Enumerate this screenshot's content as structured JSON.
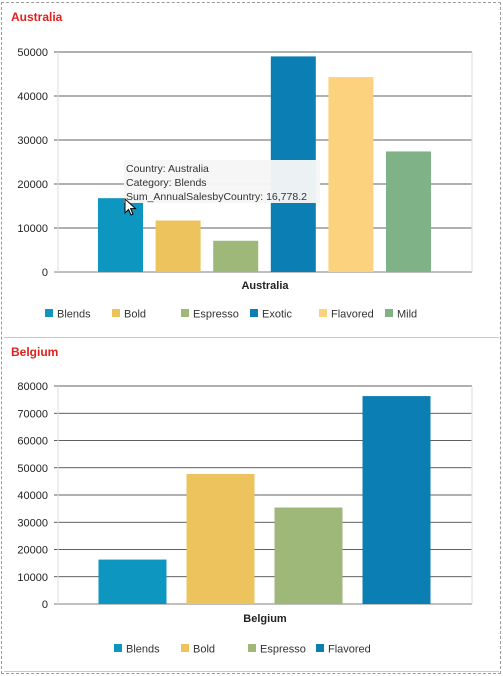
{
  "panels": [
    {
      "title": "Australia"
    },
    {
      "title": "Belgium"
    }
  ],
  "tooltip": {
    "line1": "Country: Australia",
    "line2": "Category: Blends",
    "line3": "Sum_AnnualSalesbyCountry: 16,778.2"
  },
  "colors": {
    "Blends": "#0d96bf",
    "Bold": "#ecc35c",
    "Espresso": "#9eb87a",
    "Exotic": "#0b7fb4",
    "Flavored": "#fcd27e",
    "Mild": "#7fb286"
  },
  "chart_data": [
    {
      "type": "bar",
      "xlabel": "Australia",
      "categories": [
        "Blends",
        "Bold",
        "Espresso",
        "Exotic",
        "Flavored",
        "Mild"
      ],
      "values": [
        16778.2,
        11700,
        7100,
        49000,
        44300,
        27400
      ],
      "ylim": [
        0,
        50000
      ],
      "yticks": [
        0,
        10000,
        20000,
        30000,
        40000,
        50000
      ],
      "legend": [
        "Blends",
        "Bold",
        "Espresso",
        "Exotic",
        "Flavored",
        "Mild"
      ],
      "legend_position": "bottom",
      "grid": true
    },
    {
      "type": "bar",
      "xlabel": "Belgium",
      "categories": [
        "Blends",
        "Bold",
        "Espresso",
        "Flavored"
      ],
      "bar_colors": [
        "Blends",
        "Bold",
        "Espresso",
        "Exotic"
      ],
      "values": [
        16300,
        47700,
        35400,
        76300
      ],
      "ylim": [
        0,
        80000
      ],
      "yticks": [
        0,
        10000,
        20000,
        30000,
        40000,
        50000,
        60000,
        70000,
        80000
      ],
      "legend": [
        "Blends",
        "Bold",
        "Espresso",
        "Flavored"
      ],
      "legend_colors": [
        "Blends",
        "Bold",
        "Espresso",
        "Exotic"
      ],
      "legend_position": "bottom",
      "grid": true
    }
  ]
}
